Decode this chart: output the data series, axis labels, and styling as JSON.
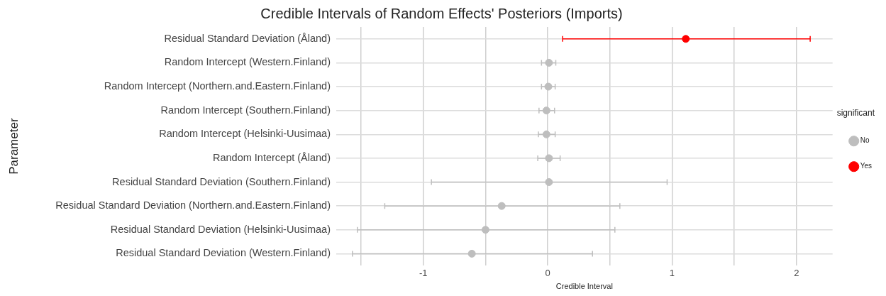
{
  "chart_data": {
    "type": "scatter",
    "orientation": "horizontal",
    "title": "Credible Intervals of Random Effects' Posteriors (Imports)",
    "xlabel": "Credible Interval",
    "ylabel": "Parameter",
    "legend_title": "significant",
    "legend": "right",
    "grid": true,
    "marker": "circle",
    "categories": [
      "Residual Standard Deviation (Åland)",
      "Random Intercept (Western.Finland)",
      "Random Intercept (Northern.and.Eastern.Finland)",
      "Random Intercept (Southern.Finland)",
      "Random Intercept (Helsinki-Uusimaa)",
      "Random Intercept (Åland)",
      "Residual Standard Deviation (Southern.Finland)",
      "Residual Standard Deviation (Northern.and.Eastern.Finland)",
      "Residual Standard Deviation (Helsinki-Uusimaa)",
      "Residual Standard Deviation (Western.Finland)"
    ],
    "xlim": [
      -1.7,
      2.29
    ],
    "xticks": [
      {
        "value": -1.5,
        "label": null
      },
      -1,
      {
        "value": -0.5,
        "label": null
      },
      0,
      {
        "value": 0.5,
        "label": null
      },
      1,
      {
        "value": 1.5,
        "label": null
      },
      2
    ],
    "series": [
      {
        "name": "No",
        "color": "#bebebe",
        "values": [
          null,
          0.01,
          0.005,
          -0.01,
          -0.01,
          0.01,
          0.01,
          -0.37,
          -0.5,
          -0.61
        ],
        "errors": [
          null,
          [
            -0.05,
            0.065
          ],
          [
            -0.05,
            0.06
          ],
          [
            -0.07,
            0.055
          ],
          [
            -0.075,
            0.06
          ],
          [
            -0.08,
            0.1
          ],
          [
            -0.935,
            0.96
          ],
          [
            -1.31,
            0.58
          ],
          [
            -1.53,
            0.54
          ],
          [
            -1.57,
            0.36
          ]
        ]
      },
      {
        "name": "Yes",
        "color": "#ff0000",
        "values": [
          1.11,
          null,
          null,
          null,
          null,
          null,
          null,
          null,
          null,
          null
        ],
        "errors": [
          [
            0.12,
            2.11
          ],
          null,
          null,
          null,
          null,
          null,
          null,
          null,
          null,
          null
        ]
      }
    ]
  }
}
